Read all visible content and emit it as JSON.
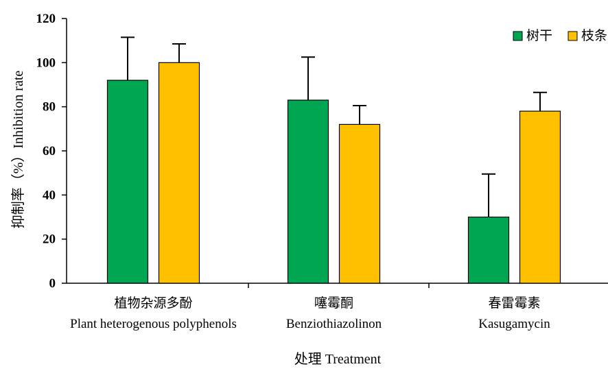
{
  "chart_data": {
    "type": "bar",
    "categories": [
      {
        "zh": "植物杂源多酚",
        "en": "Plant heterogenous polyphenols"
      },
      {
        "zh": "噻霉酮",
        "en": "Benziothiazolinon"
      },
      {
        "zh": "春雷霉素",
        "en": "Kasugamycin"
      }
    ],
    "series": [
      {
        "name": "树干",
        "color": "#00A651",
        "values": [
          92,
          83,
          30
        ],
        "errors": [
          19.5,
          19.5,
          19.5
        ]
      },
      {
        "name": "枝条",
        "color": "#FFC000",
        "values": [
          100,
          72,
          78
        ],
        "errors": [
          8.5,
          8.5,
          8.5
        ]
      }
    ],
    "xlabel": "处理 Treatment",
    "ylabel": "抑制率（%）Inhibition rate",
    "ylim": [
      0,
      120
    ],
    "yticks": [
      "0",
      "20",
      "40",
      "60",
      "80",
      "100",
      "120"
    ],
    "grid": false,
    "legend_position": "top-right"
  }
}
